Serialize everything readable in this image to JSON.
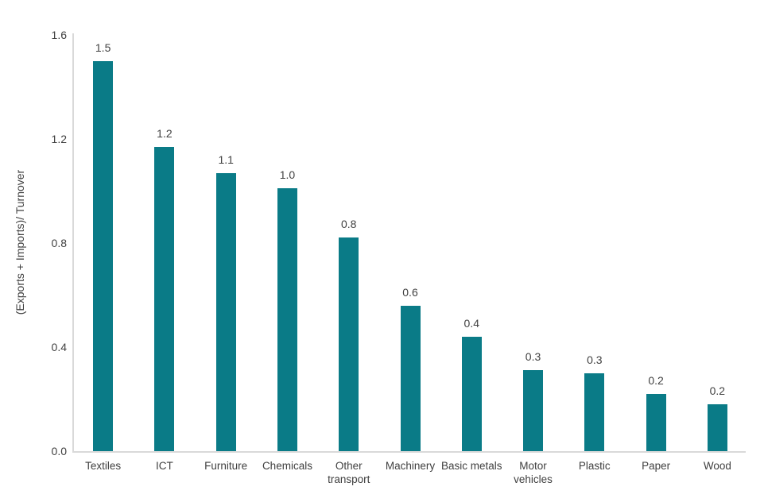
{
  "chart_data": {
    "type": "bar",
    "title": "",
    "xlabel": "",
    "ylabel": "(Exports + Imports)/ Turnover",
    "categories": [
      "Textiles",
      "ICT",
      "Furniture",
      "Chemicals",
      "Other transport",
      "Machinery",
      "Basic metals",
      "Motor vehicles",
      "Plastic",
      "Paper",
      "Wood"
    ],
    "values": [
      1.5,
      1.17,
      1.07,
      1.01,
      0.82,
      0.56,
      0.44,
      0.31,
      0.3,
      0.22,
      0.18
    ],
    "bar_labels": [
      "1.5",
      "1.2",
      "1.1",
      "1.0",
      "0.8",
      "0.6",
      "0.4",
      "0.3",
      "0.3",
      "0.2",
      "0.2"
    ],
    "ylim": [
      0,
      1.6
    ],
    "yticks": [
      0.0,
      0.4,
      0.8,
      1.2,
      1.6
    ],
    "ytick_labels": [
      "0.0",
      "0.4",
      "0.8",
      "1.2",
      "1.6"
    ],
    "grid": false,
    "legend": false,
    "colors": {
      "bar": "#0a7b87",
      "text": "#404040",
      "axis_line": "#d9d9d9",
      "background": "#ffffff"
    }
  }
}
